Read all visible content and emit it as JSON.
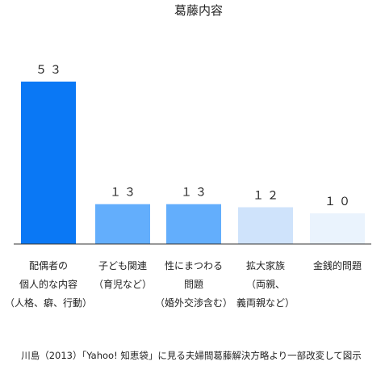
{
  "chart_data": {
    "type": "bar",
    "title": "葛藤内容",
    "categories": [
      [
        "配偶者の",
        "個人的な内容",
        "（人格、癖、行動）"
      ],
      [
        "子ども関連",
        "（育児など）"
      ],
      [
        "性にまつわる",
        "問題",
        "（婚外交渉含む）"
      ],
      [
        "拡大家族",
        "（両親、",
        "義両親など）"
      ],
      [
        "金銭的問題"
      ]
    ],
    "values": [
      53,
      13,
      13,
      12,
      10
    ],
    "value_labels": [
      "５３",
      "１３",
      "１３",
      "１２",
      "１０"
    ],
    "bar_colors": [
      "#0a78f5",
      "#63aefc",
      "#63aefc",
      "#cfe3fb",
      "#eaf3fd"
    ],
    "ylim": [
      0,
      53
    ],
    "grid": false,
    "legend": "none",
    "source": "川島（2013）「Yahoo! 知恵袋」に見る夫婦間葛藤解決方略より一部改変して図示"
  }
}
